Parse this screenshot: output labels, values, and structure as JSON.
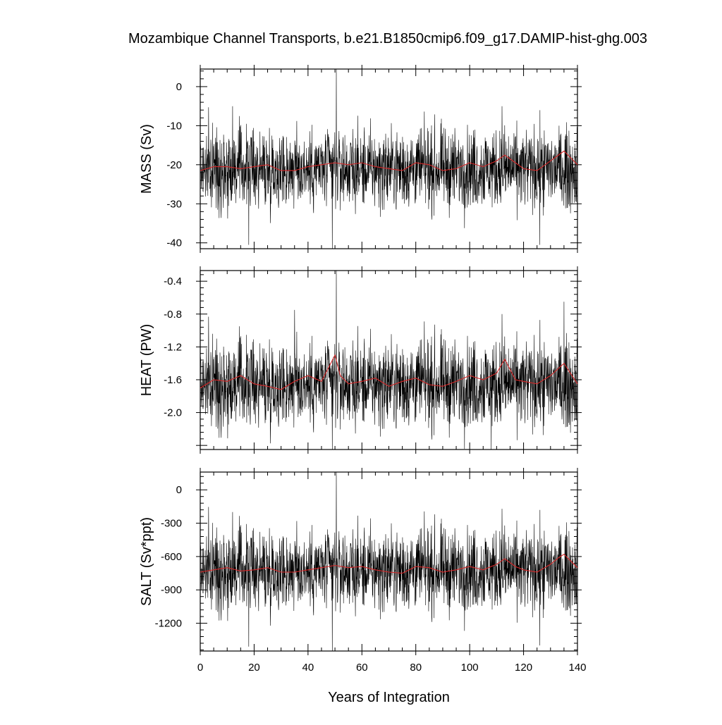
{
  "title": "Mozambique Channel Transports, b.e21.B1850cmip6.f09_g17.DAMIP-hist-ghg.003",
  "xlabel": "Years of Integration",
  "colors": {
    "raw": "#000000",
    "smoothed": "#d62728"
  },
  "chart_data": [
    {
      "type": "line",
      "panel": "mass",
      "ylabel": "MASS (Sv)",
      "xlim": [
        0,
        140
      ],
      "ylim": [
        -41.5,
        4.5
      ],
      "xticks": [
        "0",
        "20",
        "40",
        "60",
        "80",
        "100",
        "120",
        "140"
      ],
      "yticks": [
        {
          "value": 0,
          "label": "0"
        },
        {
          "value": -10,
          "label": "-10"
        },
        {
          "value": -20,
          "label": "-20"
        },
        {
          "value": -30,
          "label": "-30"
        },
        {
          "value": -40,
          "label": "-40"
        }
      ],
      "noisy": {
        "mean": -21.0,
        "amp": 5.0,
        "spikes": [
          [
            50.5,
            4.5
          ],
          [
            18,
            -40.5
          ],
          [
            49,
            -41.5
          ],
          [
            126,
            -40.5
          ],
          [
            12,
            -5
          ],
          [
            112,
            -5
          ]
        ]
      },
      "series": [
        {
          "values": [
            [
              0,
              -21.5
            ],
            [
              5,
              -20.5
            ],
            [
              10,
              -20.5
            ],
            [
              15,
              -21.0
            ],
            [
              20,
              -20.5
            ],
            [
              25,
              -20.0
            ],
            [
              30,
              -21.5
            ],
            [
              35,
              -21.5
            ],
            [
              40,
              -20.5
            ],
            [
              45,
              -20.0
            ],
            [
              50,
              -19.5
            ],
            [
              55,
              -20.0
            ],
            [
              60,
              -19.5
            ],
            [
              65,
              -20.5
            ],
            [
              70,
              -21.0
            ],
            [
              75,
              -21.5
            ],
            [
              80,
              -19.5
            ],
            [
              85,
              -20.0
            ],
            [
              90,
              -21.5
            ],
            [
              95,
              -21.0
            ],
            [
              100,
              -19.5
            ],
            [
              105,
              -20.5
            ],
            [
              110,
              -19.0
            ],
            [
              113,
              -17.5
            ],
            [
              117,
              -19.5
            ],
            [
              120,
              -21.0
            ],
            [
              125,
              -21.5
            ],
            [
              130,
              -19.0
            ],
            [
              133,
              -17.5
            ],
            [
              135,
              -16.5
            ],
            [
              140,
              -20.0
            ]
          ]
        }
      ]
    },
    {
      "type": "line",
      "panel": "heat",
      "ylabel": "HEAT (PW)",
      "xlim": [
        0,
        140
      ],
      "ylim": [
        -2.45,
        -0.27
      ],
      "xticks": [
        "0",
        "20",
        "40",
        "60",
        "80",
        "100",
        "120",
        "140"
      ],
      "yticks": [
        {
          "value": -0.4,
          "label": "-0.4"
        },
        {
          "value": -0.8,
          "label": "-0.8"
        },
        {
          "value": -1.2,
          "label": "-1.2"
        },
        {
          "value": -1.6,
          "label": "-1.6"
        },
        {
          "value": -2.0,
          "label": "-2.0"
        }
      ],
      "noisy": {
        "mean": -1.65,
        "amp": 0.26,
        "spikes": [
          [
            50.5,
            -0.27
          ],
          [
            49,
            -2.45
          ],
          [
            108,
            -2.45
          ],
          [
            35,
            -0.75
          ],
          [
            135,
            -0.65
          ],
          [
            112,
            -0.8
          ]
        ]
      },
      "series": [
        {
          "values": [
            [
              0,
              -1.7
            ],
            [
              5,
              -1.6
            ],
            [
              10,
              -1.62
            ],
            [
              15,
              -1.55
            ],
            [
              20,
              -1.65
            ],
            [
              25,
              -1.68
            ],
            [
              30,
              -1.72
            ],
            [
              35,
              -1.62
            ],
            [
              40,
              -1.55
            ],
            [
              45,
              -1.62
            ],
            [
              50,
              -1.3
            ],
            [
              52,
              -1.55
            ],
            [
              55,
              -1.65
            ],
            [
              60,
              -1.62
            ],
            [
              65,
              -1.58
            ],
            [
              70,
              -1.68
            ],
            [
              75,
              -1.62
            ],
            [
              80,
              -1.58
            ],
            [
              85,
              -1.66
            ],
            [
              90,
              -1.68
            ],
            [
              95,
              -1.62
            ],
            [
              100,
              -1.55
            ],
            [
              105,
              -1.6
            ],
            [
              110,
              -1.52
            ],
            [
              113,
              -1.35
            ],
            [
              117,
              -1.6
            ],
            [
              120,
              -1.62
            ],
            [
              125,
              -1.65
            ],
            [
              130,
              -1.55
            ],
            [
              135,
              -1.4
            ],
            [
              140,
              -1.65
            ]
          ]
        }
      ]
    },
    {
      "type": "line",
      "panel": "salt",
      "ylabel": "SALT (Sv*ppt)",
      "xlim": [
        0,
        140
      ],
      "ylim": [
        -1450,
        160
      ],
      "xticks": [
        "0",
        "20",
        "40",
        "60",
        "80",
        "100",
        "120",
        "140"
      ],
      "yticks": [
        {
          "value": 0,
          "label": "0"
        },
        {
          "value": -300,
          "label": "-300"
        },
        {
          "value": -600,
          "label": "-600"
        },
        {
          "value": -900,
          "label": "-900"
        },
        {
          "value": -1200,
          "label": "-1200"
        }
      ],
      "noisy": {
        "mean": -720,
        "amp": 180,
        "spikes": [
          [
            50.5,
            160
          ],
          [
            18,
            -1410
          ],
          [
            49,
            -1450
          ],
          [
            126,
            -1400
          ],
          [
            12,
            -200
          ],
          [
            112,
            -170
          ]
        ]
      },
      "series": [
        {
          "values": [
            [
              0,
              -740
            ],
            [
              5,
              -720
            ],
            [
              10,
              -700
            ],
            [
              15,
              -730
            ],
            [
              20,
              -720
            ],
            [
              25,
              -700
            ],
            [
              30,
              -740
            ],
            [
              35,
              -740
            ],
            [
              40,
              -720
            ],
            [
              45,
              -700
            ],
            [
              50,
              -680
            ],
            [
              55,
              -700
            ],
            [
              60,
              -690
            ],
            [
              65,
              -720
            ],
            [
              70,
              -740
            ],
            [
              75,
              -750
            ],
            [
              80,
              -690
            ],
            [
              85,
              -700
            ],
            [
              90,
              -740
            ],
            [
              95,
              -720
            ],
            [
              100,
              -690
            ],
            [
              105,
              -720
            ],
            [
              110,
              -670
            ],
            [
              113,
              -620
            ],
            [
              117,
              -690
            ],
            [
              120,
              -720
            ],
            [
              125,
              -740
            ],
            [
              130,
              -670
            ],
            [
              133,
              -610
            ],
            [
              135,
              -580
            ],
            [
              140,
              -700
            ]
          ]
        }
      ]
    }
  ]
}
